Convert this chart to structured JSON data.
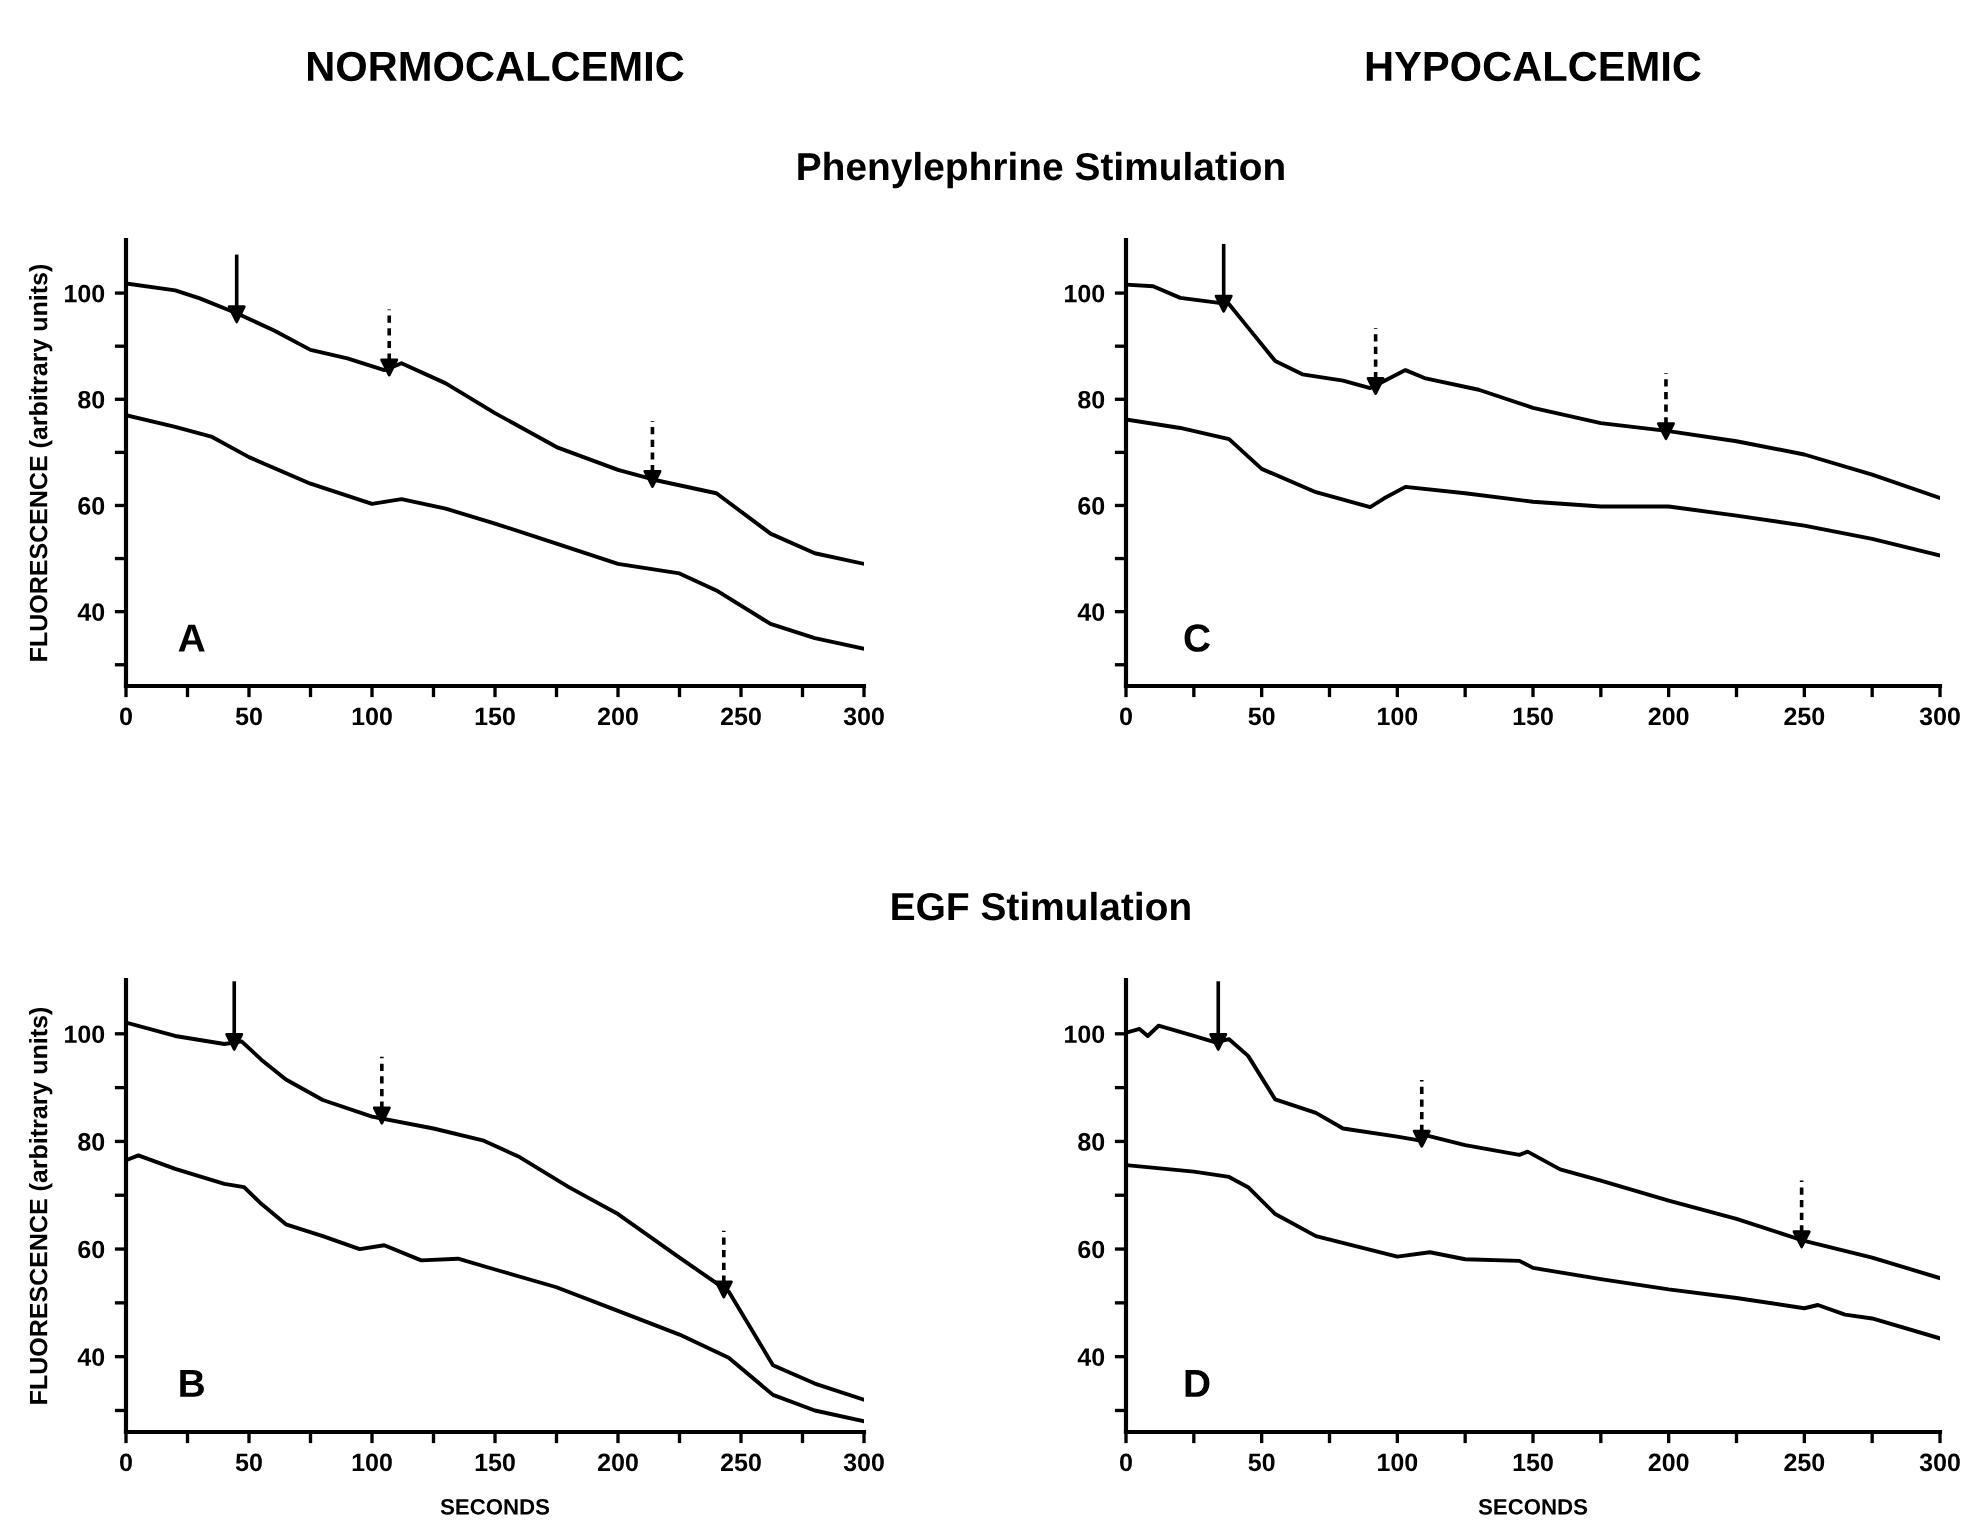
{
  "chart_data": [
    {
      "type": "line",
      "title": "NORMOCALCEMIC",
      "subtitle": "Phenylephrine Stimulation",
      "ylabel": "FLUORESCENCE (arbitrary units)",
      "xlim": [
        0,
        300
      ],
      "ylim": [
        26,
        110
      ],
      "xticks": [
        0,
        {
          "value": 25,
          "label": null
        },
        50,
        {
          "value": 75,
          "label": null
        },
        100,
        {
          "value": 125,
          "label": null
        },
        150,
        {
          "value": 175,
          "label": null
        },
        200,
        {
          "value": 225,
          "label": null
        },
        250,
        {
          "value": 275,
          "label": null
        },
        300
      ],
      "yticks": [
        {
          "value": 30,
          "label": null
        },
        40,
        {
          "value": 50,
          "label": null
        },
        60,
        {
          "value": 70,
          "label": null
        },
        80,
        {
          "value": 90,
          "label": null
        },
        100
      ],
      "grid": false,
      "legend": false,
      "marker": "none",
      "line_style": "solid",
      "annotations": [
        "A"
      ],
      "series": [
        {
          "color": "#000000",
          "x": [
            0,
            20,
            30,
            45,
            60,
            75,
            90,
            105,
            112,
            130,
            150,
            175,
            200,
            215,
            240,
            262,
            280,
            300
          ],
          "values": [
            101.8,
            100.5,
            99,
            96.2,
            93,
            89.3,
            87.7,
            85.5,
            86.8,
            83,
            77.4,
            71,
            66.7,
            64.8,
            62.3,
            54.7,
            51,
            49
          ]
        },
        {
          "color": "#000000",
          "x": [
            0,
            20,
            35,
            50,
            75,
            100,
            112,
            130,
            150,
            175,
            200,
            225,
            240,
            262,
            280,
            300
          ],
          "values": [
            77,
            74.8,
            72.9,
            69.1,
            64.1,
            60.3,
            61.2,
            59.4,
            56.6,
            52.8,
            49,
            47.2,
            44,
            37.7,
            35,
            33
          ]
        },
        {
          "type": "scatter",
          "marker": "triangle",
          "line_style": "solid",
          "color": "#000000",
          "x": [
            45
          ],
          "values": [
            96
          ]
        },
        {
          "type": "scatter",
          "marker": "triangle",
          "line_style": "dashed",
          "color": "#000000",
          "x": [
            107,
            214
          ],
          "values": [
            86,
            65
          ]
        }
      ]
    },
    {
      "type": "line",
      "subtitle": "EGF Stimulation",
      "ylabel": "FLUORESCENCE (arbitrary units)",
      "xlabel": "SECONDS",
      "xlim": [
        0,
        300
      ],
      "ylim": [
        26,
        110
      ],
      "xticks": [
        0,
        {
          "value": 25,
          "label": null
        },
        50,
        {
          "value": 75,
          "label": null
        },
        100,
        {
          "value": 125,
          "label": null
        },
        150,
        {
          "value": 175,
          "label": null
        },
        200,
        {
          "value": 225,
          "label": null
        },
        250,
        {
          "value": 275,
          "label": null
        },
        300
      ],
      "yticks": [
        {
          "value": 30,
          "label": null
        },
        40,
        {
          "value": 50,
          "label": null
        },
        60,
        {
          "value": 70,
          "label": null
        },
        80,
        {
          "value": 90,
          "label": null
        },
        100
      ],
      "grid": false,
      "legend": false,
      "marker": "none",
      "line_style": "solid",
      "annotations": [
        "B"
      ],
      "series": [
        {
          "color": "#000000",
          "x": [
            0,
            20,
            40,
            47,
            55,
            65,
            80,
            100,
            125,
            145,
            160,
            180,
            200,
            225,
            245,
            263,
            280,
            300
          ],
          "values": [
            102.1,
            99.6,
            98.1,
            98.6,
            95.2,
            91.5,
            87.7,
            84.6,
            82.4,
            80.2,
            77.1,
            71.5,
            66.5,
            58.4,
            52.1,
            38.4,
            35,
            32
          ]
        },
        {
          "color": "#000000",
          "x": [
            0,
            5,
            20,
            40,
            48,
            55,
            65,
            80,
            95,
            105,
            120,
            135,
            150,
            175,
            200,
            225,
            245,
            263,
            280,
            300
          ],
          "values": [
            76.5,
            77.4,
            74.9,
            72.1,
            71.5,
            68.4,
            64.6,
            62.4,
            60,
            60.7,
            57.9,
            58.2,
            56.2,
            52.9,
            48.5,
            44.1,
            39.8,
            32.9,
            30,
            28
          ]
        },
        {
          "type": "scatter",
          "marker": "triangle",
          "line_style": "solid",
          "color": "#000000",
          "x": [
            44
          ],
          "values": [
            98.5
          ]
        },
        {
          "type": "scatter",
          "marker": "triangle",
          "line_style": "dashed",
          "color": "#000000",
          "x": [
            104,
            243
          ],
          "values": [
            84.8,
            52.5
          ]
        }
      ]
    },
    {
      "type": "line",
      "title": "HYPOCALCEMIC",
      "xlim": [
        0,
        300
      ],
      "ylim": [
        26,
        110
      ],
      "xticks": [
        0,
        {
          "value": 25,
          "label": null
        },
        50,
        {
          "value": 75,
          "label": null
        },
        100,
        {
          "value": 125,
          "label": null
        },
        150,
        {
          "value": 175,
          "label": null
        },
        200,
        {
          "value": 225,
          "label": null
        },
        250,
        {
          "value": 275,
          "label": null
        },
        300
      ],
      "yticks": [
        {
          "value": 30,
          "label": null
        },
        40,
        {
          "value": 50,
          "label": null
        },
        60,
        {
          "value": 70,
          "label": null
        },
        80,
        {
          "value": 90,
          "label": null
        },
        100
      ],
      "grid": false,
      "legend": false,
      "marker": "none",
      "line_style": "solid",
      "annotations": [
        "C"
      ],
      "series": [
        {
          "color": "#000000",
          "x": [
            0,
            10,
            20,
            35,
            38,
            45,
            55,
            65,
            80,
            90,
            95,
            103,
            110,
            130,
            150,
            175,
            200,
            225,
            250,
            275,
            300
          ],
          "values": [
            101.6,
            101.3,
            99.1,
            98.1,
            97.9,
            93.5,
            87.2,
            84.7,
            83.5,
            82.1,
            83.4,
            85.5,
            84,
            81.8,
            78.4,
            75.5,
            74,
            72.1,
            69.6,
            65.8,
            61.4
          ]
        },
        {
          "color": "#000000",
          "x": [
            0,
            20,
            38,
            50,
            70,
            90,
            95,
            103,
            125,
            150,
            175,
            200,
            225,
            250,
            275,
            300
          ],
          "values": [
            76.2,
            74.6,
            72.5,
            66.9,
            62.5,
            59.7,
            61.3,
            63.5,
            62.3,
            60.7,
            59.8,
            59.8,
            58.1,
            56.2,
            53.7,
            50.6
          ]
        },
        {
          "type": "scatter",
          "marker": "triangle",
          "line_style": "solid",
          "color": "#000000",
          "x": [
            36
          ],
          "values": [
            98
          ]
        },
        {
          "type": "scatter",
          "marker": "triangle",
          "line_style": "dashed",
          "color": "#000000",
          "x": [
            92,
            199
          ],
          "values": [
            82.5,
            74
          ]
        }
      ]
    },
    {
      "type": "line",
      "xlabel": "SECONDS",
      "xlim": [
        0,
        300
      ],
      "ylim": [
        26,
        110
      ],
      "xticks": [
        0,
        {
          "value": 25,
          "label": null
        },
        50,
        {
          "value": 75,
          "label": null
        },
        100,
        {
          "value": 125,
          "label": null
        },
        150,
        {
          "value": 175,
          "label": null
        },
        200,
        {
          "value": 225,
          "label": null
        },
        250,
        {
          "value": 275,
          "label": null
        },
        300
      ],
      "yticks": [
        {
          "value": 30,
          "label": null
        },
        40,
        {
          "value": 50,
          "label": null
        },
        60,
        {
          "value": 70,
          "label": null
        },
        80,
        {
          "value": 90,
          "label": null
        },
        100
      ],
      "grid": false,
      "legend": false,
      "marker": "none",
      "line_style": "solid",
      "annotations": [
        "D"
      ],
      "series": [
        {
          "color": "#000000",
          "x": [
            0,
            5,
            8,
            12,
            25,
            33,
            38,
            45,
            55,
            70,
            80,
            100,
            108,
            111,
            125,
            145,
            148,
            160,
            175,
            200,
            225,
            250,
            275,
            300
          ],
          "values": [
            100.2,
            100.9,
            99.6,
            101.5,
            99.6,
            98.4,
            99,
            95.9,
            87.8,
            85.3,
            82.4,
            80.9,
            80.2,
            81.1,
            79.3,
            77.5,
            78.1,
            74.8,
            72.7,
            69,
            65.6,
            61.5,
            58.4,
            54.6
          ]
        },
        {
          "color": "#000000",
          "x": [
            0,
            25,
            38,
            45,
            55,
            70,
            100,
            112,
            125,
            145,
            150,
            175,
            200,
            225,
            250,
            255,
            265,
            275,
            300
          ],
          "values": [
            75.6,
            74.4,
            73.4,
            71.5,
            66.5,
            62.4,
            58.6,
            59.4,
            58.1,
            57.8,
            56.5,
            54.4,
            52.5,
            50.9,
            49,
            49.6,
            47.8,
            47.1,
            43.4
          ]
        },
        {
          "type": "scatter",
          "marker": "triangle",
          "line_style": "solid",
          "color": "#000000",
          "x": [
            34
          ],
          "values": [
            98.5
          ]
        },
        {
          "type": "scatter",
          "marker": "triangle",
          "line_style": "dashed",
          "color": "#000000",
          "x": [
            109,
            249
          ],
          "values": [
            80.5,
            61.8
          ]
        }
      ]
    }
  ]
}
